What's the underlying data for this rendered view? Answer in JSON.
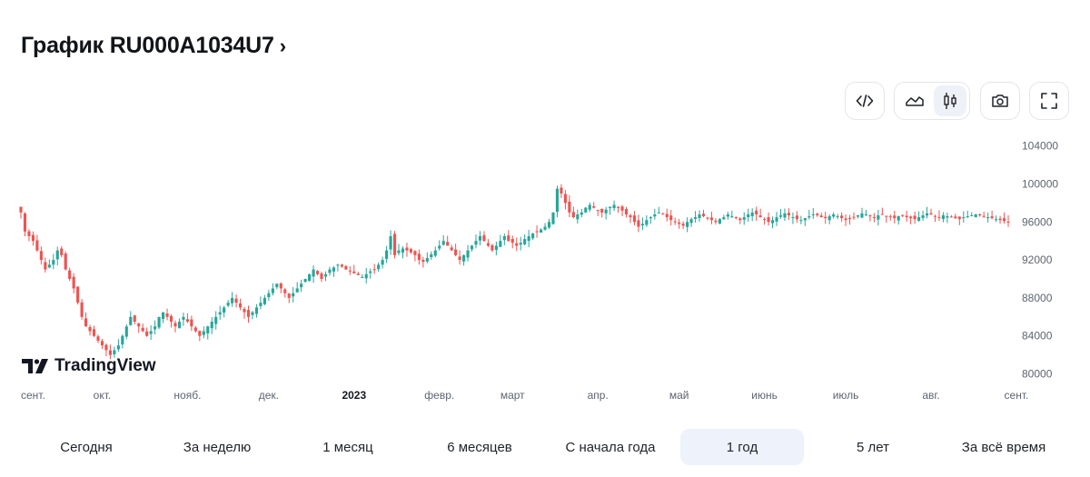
{
  "header": {
    "title": "График RU000A1034U7",
    "chevron": "›"
  },
  "toolbar": {
    "buttons": [
      {
        "name": "embed-code-icon"
      },
      {
        "name": "area-chart-icon"
      },
      {
        "name": "candlestick-icon",
        "active": true
      },
      {
        "name": "camera-icon"
      },
      {
        "name": "fullscreen-icon"
      }
    ]
  },
  "branding": {
    "logo_text": "TradingView"
  },
  "colors": {
    "up": "#26a69a",
    "down": "#ef5350",
    "axis_text": "#5d6470",
    "active_bg": "#eef2fa"
  },
  "chart_data": {
    "type": "candlestick",
    "interval": "daily",
    "ylim": [
      79000,
      105500
    ],
    "y_ticks": [
      80000,
      84000,
      88000,
      92000,
      96000,
      100000,
      104000
    ],
    "y_tick_labels": [
      "80000",
      "84000",
      "88000",
      "92000",
      "96000",
      "100000",
      "104000"
    ],
    "x_labels": [
      {
        "label": "сент.",
        "bold": false
      },
      {
        "label": "окт.",
        "bold": false
      },
      {
        "label": "нояб.",
        "bold": false
      },
      {
        "label": "дек.",
        "bold": false
      },
      {
        "label": "2023",
        "bold": true
      },
      {
        "label": "февр.",
        "bold": false
      },
      {
        "label": "март",
        "bold": false
      },
      {
        "label": "апр.",
        "bold": false
      },
      {
        "label": "май",
        "bold": false
      },
      {
        "label": "июнь",
        "bold": false
      },
      {
        "label": "июль",
        "bold": false
      },
      {
        "label": "авг.",
        "bold": false
      },
      {
        "label": "сент.",
        "bold": false
      }
    ],
    "x_label_index": [
      0,
      20,
      41,
      61,
      82,
      103,
      121,
      142,
      162,
      183,
      203,
      224,
      245
    ],
    "closes": [
      97000,
      95000,
      94500,
      94000,
      93000,
      92000,
      91000,
      91500,
      92000,
      93000,
      92500,
      91000,
      90000,
      89000,
      87500,
      86000,
      85000,
      84500,
      84000,
      83500,
      83000,
      82500,
      82000,
      82500,
      83000,
      84000,
      85000,
      86000,
      85500,
      85000,
      84500,
      84000,
      84500,
      85000,
      86000,
      86500,
      86000,
      85500,
      85000,
      85500,
      86000,
      85500,
      85000,
      84500,
      84000,
      84500,
      85000,
      85500,
      86000,
      86500,
      87000,
      87500,
      88000,
      87500,
      87000,
      86500,
      86000,
      86500,
      87000,
      87500,
      88000,
      88500,
      89000,
      89500,
      89000,
      88500,
      88000,
      88500,
      89000,
      89500,
      90000,
      90500,
      91000,
      90500,
      90000,
      90500,
      91000,
      91200,
      91500,
      91300,
      91000,
      90800,
      90600,
      90400,
      90200,
      90500,
      90800,
      91000,
      91500,
      92000,
      93000,
      94500,
      92500,
      93000,
      93200,
      93000,
      92800,
      92500,
      92000,
      91800,
      92200,
      92600,
      93000,
      93500,
      94000,
      93500,
      93000,
      92500,
      92000,
      92500,
      93000,
      93500,
      94000,
      94500,
      94000,
      93500,
      93000,
      93500,
      94000,
      94500,
      94000,
      93800,
      93500,
      93800,
      94200,
      94500,
      94800,
      95000,
      95200,
      95500,
      96000,
      97000,
      99500,
      99000,
      98000,
      97000,
      96500,
      96800,
      97000,
      97500,
      97800,
      97500,
      97200,
      97000,
      97300,
      97600,
      97800,
      97500,
      97200,
      96800,
      96500,
      96000,
      95500,
      95800,
      96200,
      96500,
      96800,
      97000,
      96800,
      96500,
      96200,
      96000,
      95800,
      95600,
      96000,
      96300,
      96500,
      96800,
      96600,
      96400,
      96200,
      96000,
      96300,
      96500,
      96800,
      96600,
      96400,
      96200,
      96500,
      96800,
      97000,
      96800,
      96500,
      96300,
      96000,
      96200,
      96500,
      96700,
      96900,
      96700,
      96500,
      96300,
      96200,
      96400,
      96600,
      96800,
      96700,
      96500,
      96400,
      96600,
      96800,
      96600,
      96400,
      96200,
      96300,
      96500,
      96700,
      96900,
      96800,
      96600,
      96500,
      96700,
      96800,
      96600,
      96500,
      96400,
      96600,
      96700,
      96500,
      96400,
      96300,
      96500,
      96700,
      96900,
      96800,
      96600,
      96500,
      96700,
      96600,
      96500,
      96400,
      96300,
      96500,
      96600,
      96700,
      96800,
      96700,
      96600,
      96500,
      96400,
      96300,
      96200,
      96100,
      96000
    ]
  },
  "periods": [
    {
      "label": "Сегодня",
      "active": false
    },
    {
      "label": "За неделю",
      "active": false
    },
    {
      "label": "1 месяц",
      "active": false
    },
    {
      "label": "6 месяцев",
      "active": false
    },
    {
      "label": "С начала года",
      "active": false
    },
    {
      "label": "1 год",
      "active": true
    },
    {
      "label": "5 лет",
      "active": false
    },
    {
      "label": "За всё время",
      "active": false
    }
  ]
}
